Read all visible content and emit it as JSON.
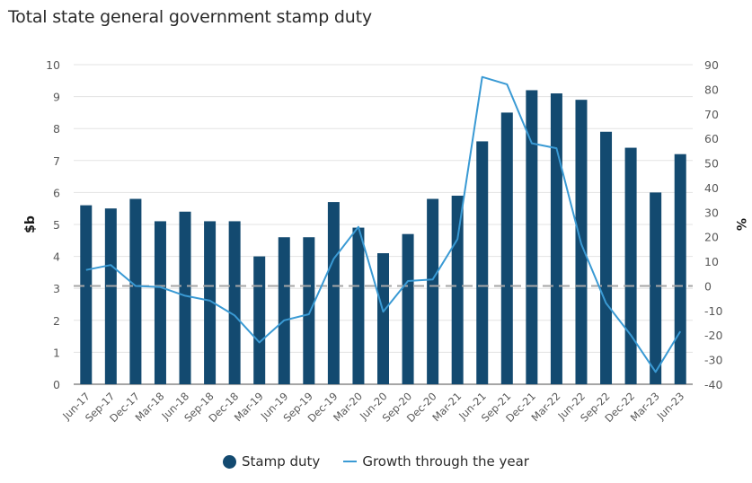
{
  "chart_data": {
    "type": "bar+line",
    "title": "Total state general government stamp duty",
    "categories": [
      "Jun-17",
      "Sep-17",
      "Dec-17",
      "Mar-18",
      "Jun-18",
      "Sep-18",
      "Dec-18",
      "Mar-19",
      "Jun-19",
      "Sep-19",
      "Dec-19",
      "Mar-20",
      "Jun-20",
      "Sep-20",
      "Dec-20",
      "Mar-21",
      "Jun-21",
      "Sep-21",
      "Dec-21",
      "Mar-22",
      "Jun-22",
      "Sep-22",
      "Dec-22",
      "Mar-23",
      "Jun-23"
    ],
    "series": [
      {
        "name": "Stamp duty",
        "type": "bar",
        "axis": "left",
        "color": "#134a70",
        "values": [
          5.6,
          5.5,
          5.8,
          5.1,
          5.4,
          5.1,
          5.1,
          4.0,
          4.6,
          4.6,
          5.7,
          4.9,
          4.1,
          4.7,
          5.8,
          5.9,
          7.6,
          8.5,
          9.2,
          9.1,
          8.9,
          7.9,
          7.4,
          6.0,
          7.2
        ]
      },
      {
        "name": "Growth through the year",
        "type": "line",
        "axis": "right",
        "color": "#3a9ad4",
        "values": [
          6.5,
          8.5,
          0.0,
          -0.5,
          -4.0,
          -6.0,
          -12.0,
          -23.0,
          -14.0,
          -11.5,
          11.0,
          24.0,
          -10.5,
          2.0,
          2.6,
          19.0,
          85.0,
          82.0,
          58.0,
          56.0,
          17.0,
          -7.0,
          -20.0,
          -35.0,
          -18.5
        ]
      }
    ],
    "ylabel": "$b",
    "ylim": [
      0,
      10
    ],
    "yticks": [
      0,
      1,
      2,
      3,
      4,
      5,
      6,
      7,
      8,
      9,
      10
    ],
    "y2label": "%",
    "y2lim": [
      -40,
      90
    ],
    "y2ticks": [
      -40,
      -30,
      -20,
      -10,
      0,
      10,
      20,
      30,
      40,
      50,
      60,
      70,
      80,
      90
    ],
    "xlabel": "",
    "grid": true,
    "legend_position": "bottom-center",
    "zero_line_color": "#a6a6a6",
    "grid_color": "#e3e3e3"
  }
}
